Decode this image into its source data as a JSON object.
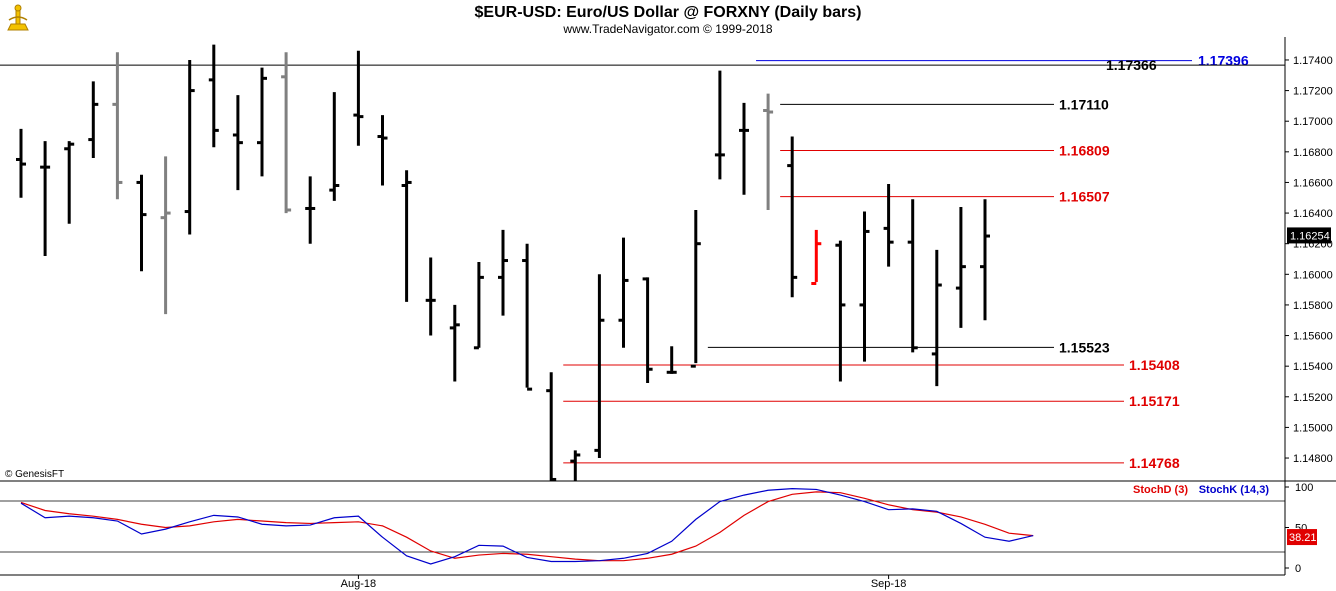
{
  "header": {
    "title": "$EUR-USD:  Euro/US Dollar @ FORXNY  (Daily bars)",
    "subtitle": "www.TradeNavigator.com © 1999-2018",
    "logo_icon": "trade-navigator-logo-icon"
  },
  "copyright": "© GenesisFT",
  "colors": {
    "up_bar": "#000000",
    "bar_gray": "#808080",
    "bar_red": "#ff0000",
    "level_black": "#000000",
    "level_red": "#e00000",
    "level_blue": "#0000e0",
    "stoch_d": "#e00000",
    "stoch_k": "#0000cc"
  },
  "chart_data": [
    {
      "type": "ohlc",
      "title": "$EUR-USD:  Euro/US Dollar @ FORXNY  (Daily bars)",
      "ylim": [
        1.1465,
        1.1755
      ],
      "y_ticks": [
        "1.17400",
        "1.17200",
        "1.17000",
        "1.16800",
        "1.16600",
        "1.16400",
        "1.16200",
        "1.16000",
        "1.15800",
        "1.15600",
        "1.15400",
        "1.15200",
        "1.15000",
        "1.14800"
      ],
      "x_tick_labels": [
        {
          "label": "Aug-18",
          "bar": 14
        },
        {
          "label": "Sep-18",
          "bar": 36
        }
      ],
      "last_price": "1.16254",
      "bars": [
        {
          "o": 1.1675,
          "h": 1.1695,
          "l": 1.165,
          "c": 1.1672,
          "color": "black"
        },
        {
          "o": 1.167,
          "h": 1.1687,
          "l": 1.1612,
          "c": 1.167,
          "color": "black"
        },
        {
          "o": 1.1682,
          "h": 1.1687,
          "l": 1.1633,
          "c": 1.1685,
          "color": "black"
        },
        {
          "o": 1.1688,
          "h": 1.1726,
          "l": 1.1676,
          "c": 1.1711,
          "color": "black"
        },
        {
          "o": 1.1711,
          "h": 1.1745,
          "l": 1.1649,
          "c": 1.166,
          "color": "gray"
        },
        {
          "o": 1.166,
          "h": 1.1665,
          "l": 1.1602,
          "c": 1.1639,
          "color": "black"
        },
        {
          "o": 1.1637,
          "h": 1.1677,
          "l": 1.1574,
          "c": 1.164,
          "color": "gray"
        },
        {
          "o": 1.1641,
          "h": 1.174,
          "l": 1.1626,
          "c": 1.172,
          "color": "black"
        },
        {
          "o": 1.1727,
          "h": 1.175,
          "l": 1.1683,
          "c": 1.1694,
          "color": "black"
        },
        {
          "o": 1.1691,
          "h": 1.1717,
          "l": 1.1655,
          "c": 1.1686,
          "color": "black"
        },
        {
          "o": 1.1686,
          "h": 1.1735,
          "l": 1.1664,
          "c": 1.1728,
          "color": "black"
        },
        {
          "o": 1.1729,
          "h": 1.1745,
          "l": 1.164,
          "c": 1.1642,
          "color": "gray"
        },
        {
          "o": 1.1643,
          "h": 1.1664,
          "l": 1.162,
          "c": 1.1643,
          "color": "black"
        },
        {
          "o": 1.1655,
          "h": 1.1719,
          "l": 1.1648,
          "c": 1.1658,
          "color": "black"
        },
        {
          "o": 1.1704,
          "h": 1.1746,
          "l": 1.1684,
          "c": 1.1703,
          "color": "black"
        },
        {
          "o": 1.169,
          "h": 1.1704,
          "l": 1.1658,
          "c": 1.1689,
          "color": "black"
        },
        {
          "o": 1.1658,
          "h": 1.1668,
          "l": 1.1582,
          "c": 1.166,
          "color": "black"
        },
        {
          "o": 1.1583,
          "h": 1.1611,
          "l": 1.156,
          "c": 1.1583,
          "color": "black"
        },
        {
          "o": 1.1565,
          "h": 1.158,
          "l": 1.153,
          "c": 1.1567,
          "color": "black"
        },
        {
          "o": 1.1552,
          "h": 1.1608,
          "l": 1.1552,
          "c": 1.1598,
          "color": "black"
        },
        {
          "o": 1.1598,
          "h": 1.1629,
          "l": 1.1573,
          "c": 1.1609,
          "color": "black"
        },
        {
          "o": 1.1609,
          "h": 1.162,
          "l": 1.1526,
          "c": 1.1525,
          "color": "black"
        },
        {
          "o": 1.1524,
          "h": 1.1536,
          "l": 1.1465,
          "c": 1.1466,
          "color": "black"
        },
        {
          "o": 1.1478,
          "h": 1.1485,
          "l": 1.1465,
          "c": 1.1482,
          "color": "black"
        },
        {
          "o": 1.1485,
          "h": 1.16,
          "l": 1.148,
          "c": 1.157,
          "color": "black"
        },
        {
          "o": 1.157,
          "h": 1.1624,
          "l": 1.1552,
          "c": 1.1596,
          "color": "black"
        },
        {
          "o": 1.1597,
          "h": 1.1598,
          "l": 1.1529,
          "c": 1.1538,
          "color": "black"
        },
        {
          "o": 1.1536,
          "h": 1.1553,
          "l": 1.1535,
          "c": 1.1536,
          "color": "black"
        },
        {
          "o": 1.154,
          "h": 1.1642,
          "l": 1.1542,
          "c": 1.162,
          "color": "black"
        },
        {
          "o": 1.1678,
          "h": 1.1733,
          "l": 1.1662,
          "c": 1.1678,
          "color": "black"
        },
        {
          "o": 1.1694,
          "h": 1.1712,
          "l": 1.1652,
          "c": 1.1694,
          "color": "black"
        },
        {
          "o": 1.1707,
          "h": 1.1718,
          "l": 1.1642,
          "c": 1.1706,
          "color": "gray"
        },
        {
          "o": 1.1671,
          "h": 1.169,
          "l": 1.1585,
          "c": 1.1598,
          "color": "black"
        },
        {
          "o": 1.1594,
          "h": 1.1629,
          "l": 1.1595,
          "c": 1.162,
          "color": "red"
        },
        {
          "o": 1.1619,
          "h": 1.1622,
          "l": 1.153,
          "c": 1.158,
          "color": "black"
        },
        {
          "o": 1.158,
          "h": 1.1641,
          "l": 1.1543,
          "c": 1.1628,
          "color": "black"
        },
        {
          "o": 1.163,
          "h": 1.1659,
          "l": 1.1605,
          "c": 1.1621,
          "color": "black"
        },
        {
          "o": 1.1621,
          "h": 1.1649,
          "l": 1.1549,
          "c": 1.1552,
          "color": "black"
        },
        {
          "o": 1.1548,
          "h": 1.1616,
          "l": 1.1527,
          "c": 1.1593,
          "color": "black"
        },
        {
          "o": 1.1591,
          "h": 1.1644,
          "l": 1.1565,
          "c": 1.1605,
          "color": "black"
        },
        {
          "o": 1.1605,
          "h": 1.1649,
          "l": 1.157,
          "c": 1.1625,
          "color": "black"
        }
      ],
      "levels": [
        {
          "label": "1.17396",
          "value": 1.17396,
          "color": "blue",
          "from_bar": 30.5
        },
        {
          "label": "1.17366",
          "value": 1.17366,
          "color": "black",
          "from_bar": -1
        },
        {
          "label": "1.17110",
          "value": 1.1711,
          "color": "black",
          "from_bar": 31.5
        },
        {
          "label": "1.16809",
          "value": 1.16809,
          "color": "red",
          "from_bar": 31.5
        },
        {
          "label": "1.16507",
          "value": 1.16507,
          "color": "red",
          "from_bar": 31.5
        },
        {
          "label": "1.15523",
          "value": 1.15523,
          "color": "black",
          "from_bar": 28.5
        },
        {
          "label": "1.15408",
          "value": 1.15408,
          "color": "red",
          "from_bar": 22.5
        },
        {
          "label": "1.15171",
          "value": 1.15171,
          "color": "red",
          "from_bar": 22.5
        },
        {
          "label": "1.14768",
          "value": 1.14768,
          "color": "red",
          "from_bar": 22.5
        }
      ]
    },
    {
      "type": "line",
      "ylim": [
        0,
        100
      ],
      "y_ticks": [
        "100",
        "50",
        "0"
      ],
      "last_value": "38.21",
      "series": [
        {
          "name": "StochD (3)",
          "color": "red",
          "values": [
            81,
            71,
            67,
            64,
            60,
            54,
            50,
            52,
            57,
            60,
            58,
            56,
            55,
            56,
            57,
            52,
            38,
            21,
            12,
            16,
            18,
            17,
            14,
            11,
            9,
            9,
            12,
            17,
            27,
            44,
            65,
            82,
            91,
            94,
            93,
            86,
            78,
            72,
            69,
            63,
            54,
            43,
            40
          ]
        },
        {
          "name": "StochK (14,3)",
          "color": "blue",
          "values": [
            80,
            62,
            64,
            62,
            58,
            42,
            48,
            57,
            65,
            63,
            54,
            52,
            53,
            62,
            64,
            38,
            15,
            5,
            14,
            28,
            27,
            13,
            8,
            8,
            9,
            12,
            18,
            33,
            60,
            82,
            90,
            96,
            98,
            97,
            90,
            82,
            72,
            73,
            70,
            55,
            38,
            33,
            40
          ]
        }
      ]
    }
  ]
}
